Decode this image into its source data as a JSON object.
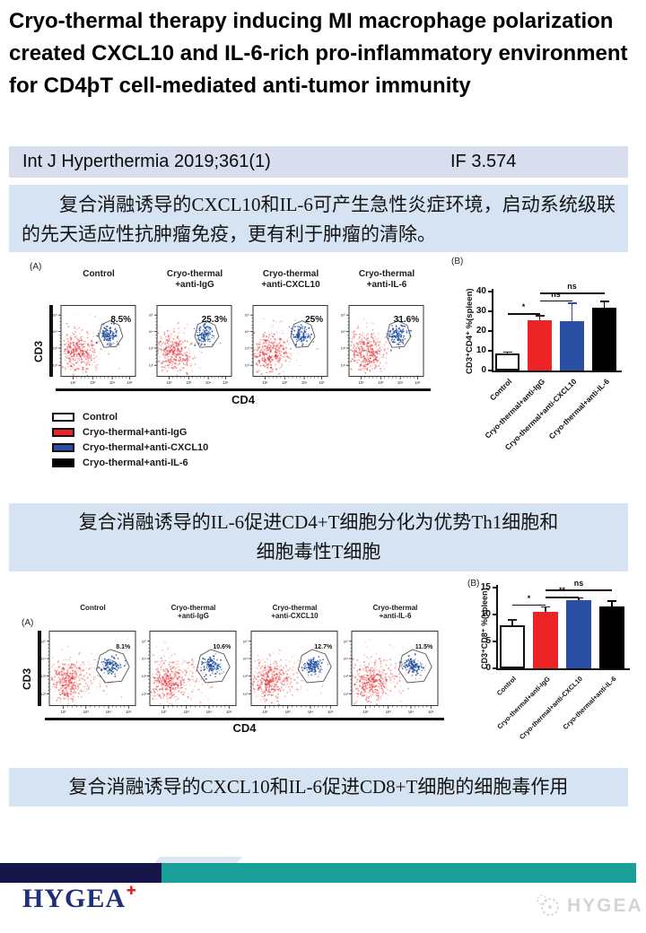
{
  "page": {
    "title": "Cryo-thermal therapy inducing MI macrophage polarization created CXCL10 and IL-6-rich pro-inflammatory environment for CD4þT cell-mediated anti-tumor immunity",
    "journal": {
      "citation": "Int J Hyperthermia 2019;361(1)",
      "impact_factor": "IF 3.574"
    }
  },
  "boxes": {
    "box1": "复合消融诱导的CXCL10和IL-6可产生急性炎症环境，启动系统级联的先天适应性抗肿瘤免疫，更有利于肿瘤的清除。",
    "box2_line1": "复合消融诱导的IL-6促进CD4+T细胞分化为优势Th1细胞和",
    "box2_line2": "细胞毒性T细胞",
    "box3": "复合消融诱导的CXCL10和IL-6促进CD8+T细胞的细胞毒作用"
  },
  "figure1": {
    "panel_a": "(A)",
    "panel_b": "(B)",
    "x_axis_label": "CD4",
    "y_axis_label": "CD3",
    "x_ticks": [
      "10²",
      "10³",
      "10⁴",
      "10⁵"
    ],
    "y_ticks": [
      "10⁵",
      "10⁴",
      "10³",
      "10²"
    ],
    "plots": [
      {
        "title_line1": "Control",
        "title_line2": "",
        "percent": "8.5%"
      },
      {
        "title_line1": "Cryo-thermal",
        "title_line2": "+anti-IgG",
        "percent": "25.3%"
      },
      {
        "title_line1": "Cryo-thermal",
        "title_line2": "+anti-CXCL10",
        "percent": "25%"
      },
      {
        "title_line1": "Cryo-thermal",
        "title_line2": "+anti-IL-6",
        "percent": "31.6%"
      }
    ]
  },
  "figure2": {
    "panel_a": "(A)",
    "panel_b": "(B)",
    "x_axis_label": "CD4",
    "y_axis_label": "CD3",
    "x_ticks": [
      "10²",
      "10³",
      "10⁴",
      "10⁵"
    ],
    "y_ticks": [
      "10⁵",
      "10⁴",
      "10³",
      "10²"
    ],
    "plots": [
      {
        "title_line1": "Control",
        "title_line2": "",
        "percent": "8.1%"
      },
      {
        "title_line1": "Cryo-thermal",
        "title_line2": "+anti-IgG",
        "percent": "10.6%"
      },
      {
        "title_line1": "Cryo-thermal",
        "title_line2": "+anti-CXCL10",
        "percent": "12.7%"
      },
      {
        "title_line1": "Cryo-thermal",
        "title_line2": "+anti-IL-6",
        "percent": "11.5%"
      }
    ]
  },
  "legend": {
    "items": [
      {
        "label": "Control",
        "color": "#ffffff"
      },
      {
        "label": "Cryo-thermal+anti-IgG",
        "color": "#ec2426"
      },
      {
        "label": "Cryo-thermal+anti-CXCL10",
        "color": "#2b4fa2"
      },
      {
        "label": "Cryo-thermal+anti-IL-6",
        "color": "#000000"
      }
    ]
  },
  "chart_data": [
    {
      "type": "bar",
      "categories": [
        "Control",
        "Cryo-thermal+anti-IgG",
        "Cryo-thermal+anti-CXCL10",
        "Cryo-thermal+anti-IL-6"
      ],
      "values": [
        8.5,
        25.3,
        25,
        31.6
      ],
      "errors": [
        0.6,
        2.2,
        8.8,
        3.2
      ],
      "colors": [
        "#ffffff",
        "#ec2426",
        "#2b4fa2",
        "#000000"
      ],
      "error_colors": [
        "#222222",
        "#222222",
        "#2b4fa2",
        "#000000"
      ],
      "ylabel": "CD3⁺CD4⁺ %(spleen)",
      "ylim": [
        0,
        40
      ],
      "yticks": [
        0,
        10,
        20,
        30,
        40
      ],
      "significance": [
        {
          "from": 0,
          "to": 1,
          "label": "*",
          "y": 29
        },
        {
          "from": 1,
          "to": 2,
          "label": "ns",
          "y": 35.5
        },
        {
          "from": 1,
          "to": 3,
          "label": "ns",
          "y": 39.5
        }
      ]
    },
    {
      "type": "bar",
      "categories": [
        "Control",
        "Cryo-thermal+anti-IgG",
        "Cryo-thermal+anti-CXCL10",
        "Cryo-thermal+anti-IL-6"
      ],
      "values": [
        8,
        10.5,
        12.7,
        11.5
      ],
      "errors": [
        0.9,
        0.8,
        0.25,
        0.9
      ],
      "colors": [
        "#ffffff",
        "#ec2426",
        "#2b4fa2",
        "#000000"
      ],
      "error_colors": [
        "#222222",
        "#222222",
        "#000000",
        "#000000"
      ],
      "ylabel": "CD3⁺CD8⁺ %(spleen)",
      "ylim": [
        0,
        15
      ],
      "yticks": [
        0,
        5,
        10,
        15
      ],
      "significance": [
        {
          "from": 0,
          "to": 1,
          "label": "*",
          "y": 11.9
        },
        {
          "from": 1,
          "to": 2,
          "label": "**",
          "y": 13.3
        },
        {
          "from": 1,
          "to": 3,
          "label": "ns",
          "y": 14.6
        }
      ]
    }
  ],
  "footer": {
    "brand": "HYGEA",
    "watermark": "HYGEA"
  },
  "colors": {
    "journal_bar_bg": "#d9deef",
    "cn_box_bg": "#d6e3f2",
    "scatter_red": "#e5272b",
    "scatter_blue": "#1f4fa0",
    "footer_navy": "#15154a",
    "footer_teal": "#1aa098",
    "brand_navy": "#202e7c",
    "brand_cross_red": "#e32128",
    "watermark_gray": "#d4d4d4"
  }
}
